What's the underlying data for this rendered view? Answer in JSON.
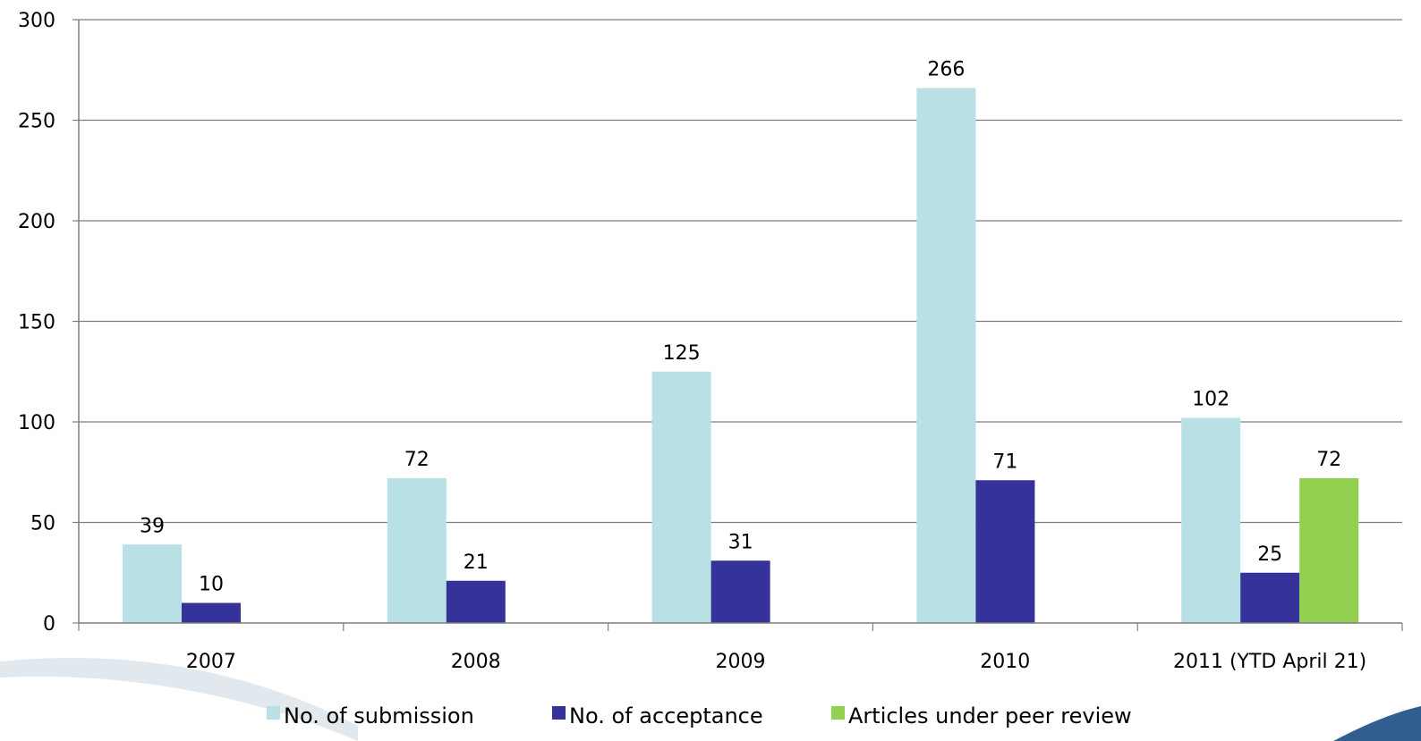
{
  "chart_data": {
    "type": "bar",
    "categories": [
      "2007",
      "2008",
      "2009",
      "2010",
      "2011 (YTD April 21)"
    ],
    "series": [
      {
        "name": "No. of submission",
        "color": "#b9e0e5",
        "values": [
          39,
          72,
          125,
          266,
          102
        ]
      },
      {
        "name": "No. of acceptance",
        "color": "#353399",
        "values": [
          10,
          21,
          31,
          71,
          25
        ]
      },
      {
        "name": "Articles under peer review",
        "color": "#92d050",
        "values": [
          null,
          null,
          null,
          null,
          72
        ]
      }
    ],
    "title": "",
    "xlabel": "",
    "ylabel": "",
    "ylim": [
      0,
      300
    ],
    "yticks": [
      0,
      50,
      100,
      150,
      200,
      250,
      300
    ],
    "grid": true,
    "data_labels": true,
    "legend_position": "bottom"
  }
}
